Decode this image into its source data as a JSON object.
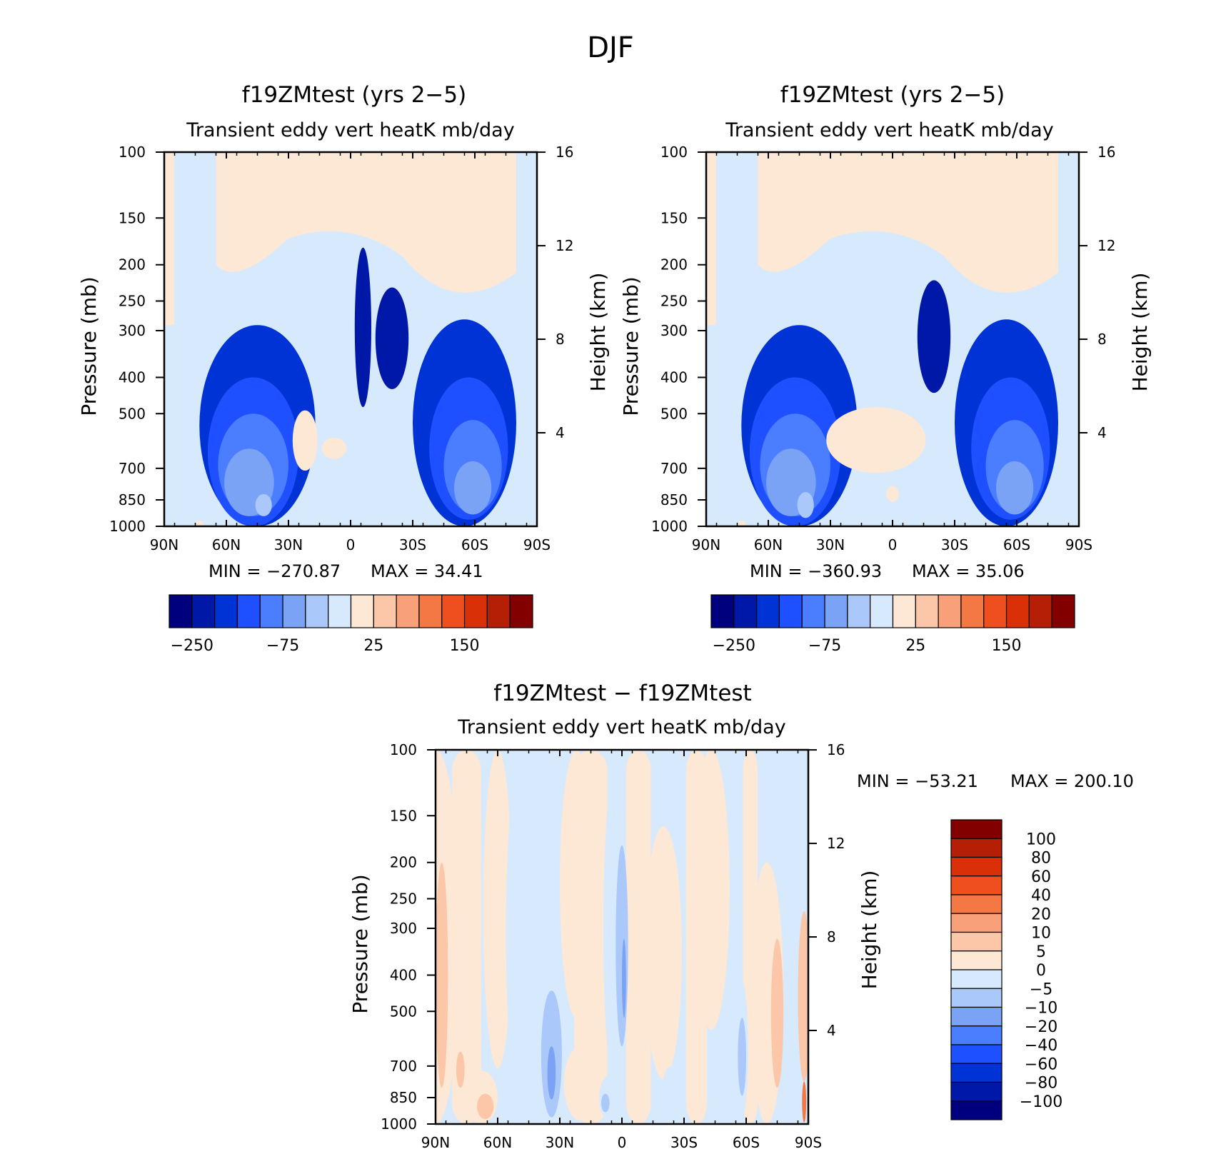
{
  "figure_title": "DJF",
  "chart_data": [
    {
      "type": "heatmap",
      "title": "f19ZMtest (yrs 2−5)",
      "subtitle": "Transient eddy vert heatK mb/day",
      "ylabel": "Pressure (mb)",
      "y2label": "Height (km)",
      "x_ticks": [
        "90N",
        "60N",
        "30N",
        "0",
        "30S",
        "60S",
        "90S"
      ],
      "y_ticks": [
        100,
        150,
        200,
        250,
        300,
        400,
        500,
        700,
        850,
        1000
      ],
      "y2_ticks": [
        4,
        8,
        12,
        16
      ],
      "ylim": [
        1000,
        100
      ],
      "min_text": "MIN = −270.87",
      "max_text": "MAX = 34.41",
      "colorbar": {
        "colors": [
          "#00007f",
          "#0018a8",
          "#0033d6",
          "#1f50ff",
          "#4a7dff",
          "#7aa3f5",
          "#aac9fa",
          "#d7e9fc",
          "#fde8d6",
          "#fcc7a8",
          "#f8a07a",
          "#f47844",
          "#ef4f1e",
          "#d93008",
          "#b51f05",
          "#830000"
        ],
        "labels": [
          "−250",
          "−75",
          "25",
          "150"
        ]
      },
      "features": [
        {
          "x": -45,
          "p": 720,
          "rx": 28,
          "rp": 430,
          "level": -6
        },
        {
          "x": -47,
          "p": 700,
          "rx": 22,
          "rp": 300,
          "level": -5
        },
        {
          "x": -47,
          "p": 720,
          "rx": 17,
          "rp": 220,
          "level": -4
        },
        {
          "x": -49,
          "p": 780,
          "rx": 12,
          "rp": 160,
          "level": -3
        },
        {
          "x": -42,
          "p": 880,
          "rx": 4,
          "rp": 60,
          "level": -2
        },
        {
          "x": 55,
          "p": 660,
          "rx": 25,
          "rp": 380,
          "level": -6
        },
        {
          "x": 57,
          "p": 680,
          "rx": 19,
          "rp": 280,
          "level": -5
        },
        {
          "x": 59,
          "p": 720,
          "rx": 14,
          "rp": 200,
          "level": -4
        },
        {
          "x": 59,
          "p": 800,
          "rx": 9,
          "rp": 130,
          "level": -3
        },
        {
          "x": 6,
          "p": 330,
          "rx": 4,
          "rp": 150,
          "level": -7
        },
        {
          "x": 20,
          "p": 330,
          "rx": 8,
          "rp": 100,
          "level": -7
        },
        {
          "x": -22,
          "p": 600,
          "rx": 6,
          "rp": 110,
          "level": 1
        },
        {
          "x": -8,
          "p": 620,
          "rx": 6,
          "rp": 40,
          "level": 1
        },
        {
          "x": -73,
          "p": 985,
          "rx": 2,
          "rp": 20,
          "level": 1
        }
      ]
    },
    {
      "type": "heatmap",
      "title": "f19ZMtest (yrs 2−5)",
      "subtitle": "Transient eddy vert heatK mb/day",
      "ylabel": "Pressure (mb)",
      "y2label": "Height (km)",
      "x_ticks": [
        "90N",
        "60N",
        "30N",
        "0",
        "30S",
        "60S",
        "90S"
      ],
      "y_ticks": [
        100,
        150,
        200,
        250,
        300,
        400,
        500,
        700,
        850,
        1000
      ],
      "y2_ticks": [
        4,
        8,
        12,
        16
      ],
      "ylim": [
        1000,
        100
      ],
      "min_text": "MIN = −360.93",
      "max_text": "MAX = 35.06",
      "colorbar": {
        "colors": [
          "#00007f",
          "#0018a8",
          "#0033d6",
          "#1f50ff",
          "#4a7dff",
          "#7aa3f5",
          "#aac9fa",
          "#d7e9fc",
          "#fde8d6",
          "#fcc7a8",
          "#f8a07a",
          "#f47844",
          "#ef4f1e",
          "#d93008",
          "#b51f05",
          "#830000"
        ],
        "labels": [
          "−250",
          "−75",
          "25",
          "150"
        ]
      },
      "features": [
        {
          "x": -45,
          "p": 720,
          "rx": 28,
          "rp": 430,
          "level": -6
        },
        {
          "x": -47,
          "p": 700,
          "rx": 22,
          "rp": 300,
          "level": -5
        },
        {
          "x": -47,
          "p": 720,
          "rx": 17,
          "rp": 220,
          "level": -4
        },
        {
          "x": -49,
          "p": 780,
          "rx": 12,
          "rp": 160,
          "level": -3
        },
        {
          "x": -42,
          "p": 880,
          "rx": 4,
          "rp": 70,
          "level": -2
        },
        {
          "x": 55,
          "p": 660,
          "rx": 25,
          "rp": 380,
          "level": -6
        },
        {
          "x": 57,
          "p": 680,
          "rx": 19,
          "rp": 280,
          "level": -5
        },
        {
          "x": 59,
          "p": 720,
          "rx": 14,
          "rp": 200,
          "level": -4
        },
        {
          "x": 59,
          "p": 800,
          "rx": 9,
          "rp": 130,
          "level": -3
        },
        {
          "x": 20,
          "p": 330,
          "rx": 8,
          "rp": 110,
          "level": -7
        },
        {
          "x": -8,
          "p": 600,
          "rx": 24,
          "rp": 120,
          "level": 1
        },
        {
          "x": 0,
          "p": 820,
          "rx": 3,
          "rp": 40,
          "level": 1
        },
        {
          "x": -73,
          "p": 985,
          "rx": 2,
          "rp": 20,
          "level": 1
        }
      ]
    },
    {
      "type": "heatmap",
      "title": "f19ZMtest − f19ZMtest",
      "subtitle": "Transient eddy vert heatK mb/day",
      "ylabel": "Pressure (mb)",
      "y2label": "Height (km)",
      "x_ticks": [
        "90N",
        "60N",
        "30N",
        "0",
        "30S",
        "60S",
        "90S"
      ],
      "y_ticks": [
        100,
        150,
        200,
        250,
        300,
        400,
        500,
        700,
        850,
        1000
      ],
      "y2_ticks": [
        4,
        8,
        12,
        16
      ],
      "ylim": [
        1000,
        100
      ],
      "min_text": "MIN = −53.21",
      "max_text": "MAX = 200.10",
      "colorbar": {
        "colors": [
          "#830000",
          "#b51f05",
          "#d93008",
          "#ef4f1e",
          "#f47844",
          "#f8a07a",
          "#fcc7a8",
          "#fde8d6",
          "#d7e9fc",
          "#aac9fa",
          "#7aa3f5",
          "#4a7dff",
          "#1f50ff",
          "#0033d6",
          "#0018a8",
          "#00007f"
        ],
        "labels": [
          "100",
          "80",
          "60",
          "40",
          "20",
          "10",
          "5",
          "0",
          "−5",
          "−10",
          "−20",
          "−40",
          "−60",
          "−80",
          "−100"
        ]
      },
      "features": [
        {
          "x": -90,
          "p": 500,
          "rx": 12,
          "rp": 600,
          "level": 1
        },
        {
          "x": -87,
          "p": 500,
          "rx": 3,
          "rp": 300,
          "level": 2
        },
        {
          "x": -60,
          "p": 380,
          "rx": 7,
          "rp": 330,
          "level": 1
        },
        {
          "x": -68,
          "p": 860,
          "rx": 8,
          "rp": 140,
          "level": 1
        },
        {
          "x": -66,
          "p": 900,
          "rx": 4,
          "rp": 70,
          "level": 2
        },
        {
          "x": -78,
          "p": 720,
          "rx": 2,
          "rp": 80,
          "level": 2
        },
        {
          "x": -48,
          "p": 500,
          "rx": 8,
          "rp": 450,
          "level": -1
        },
        {
          "x": -34,
          "p": 620,
          "rx": 10,
          "rp": 400,
          "level": -1
        },
        {
          "x": -34,
          "p": 700,
          "rx": 5,
          "rp": 260,
          "level": -2
        },
        {
          "x": -34,
          "p": 740,
          "rx": 2,
          "rp": 120,
          "level": -3
        },
        {
          "x": -22,
          "p": 300,
          "rx": 8,
          "rp": 220,
          "level": 1
        },
        {
          "x": -20,
          "p": 800,
          "rx": 8,
          "rp": 180,
          "level": 1
        },
        {
          "x": -4,
          "p": 440,
          "rx": 5,
          "rp": 320,
          "level": -1
        },
        {
          "x": 0,
          "p": 400,
          "rx": 3,
          "rp": 220,
          "level": -2
        },
        {
          "x": 1,
          "p": 420,
          "rx": 1,
          "rp": 100,
          "level": -3
        },
        {
          "x": -6,
          "p": 860,
          "rx": 5,
          "rp": 120,
          "level": -1
        },
        {
          "x": -8,
          "p": 880,
          "rx": 2,
          "rp": 50,
          "level": -2
        },
        {
          "x": 20,
          "p": 460,
          "rx": 9,
          "rp": 300,
          "level": 1
        },
        {
          "x": 24,
          "p": 850,
          "rx": 5,
          "rp": 150,
          "level": -1
        },
        {
          "x": 43,
          "p": 300,
          "rx": 9,
          "rp": 260,
          "level": 1
        },
        {
          "x": 57,
          "p": 700,
          "rx": 4,
          "rp": 300,
          "level": -1
        },
        {
          "x": 58,
          "p": 680,
          "rx": 2,
          "rp": 160,
          "level": -2
        },
        {
          "x": 70,
          "p": 600,
          "rx": 8,
          "rp": 400,
          "level": 1
        },
        {
          "x": 75,
          "p": 560,
          "rx": 3,
          "rp": 240,
          "level": 2
        },
        {
          "x": 88,
          "p": 520,
          "rx": 3,
          "rp": 250,
          "level": 2
        },
        {
          "x": 88,
          "p": 880,
          "rx": 1,
          "rp": 110,
          "level": 4
        }
      ]
    }
  ]
}
